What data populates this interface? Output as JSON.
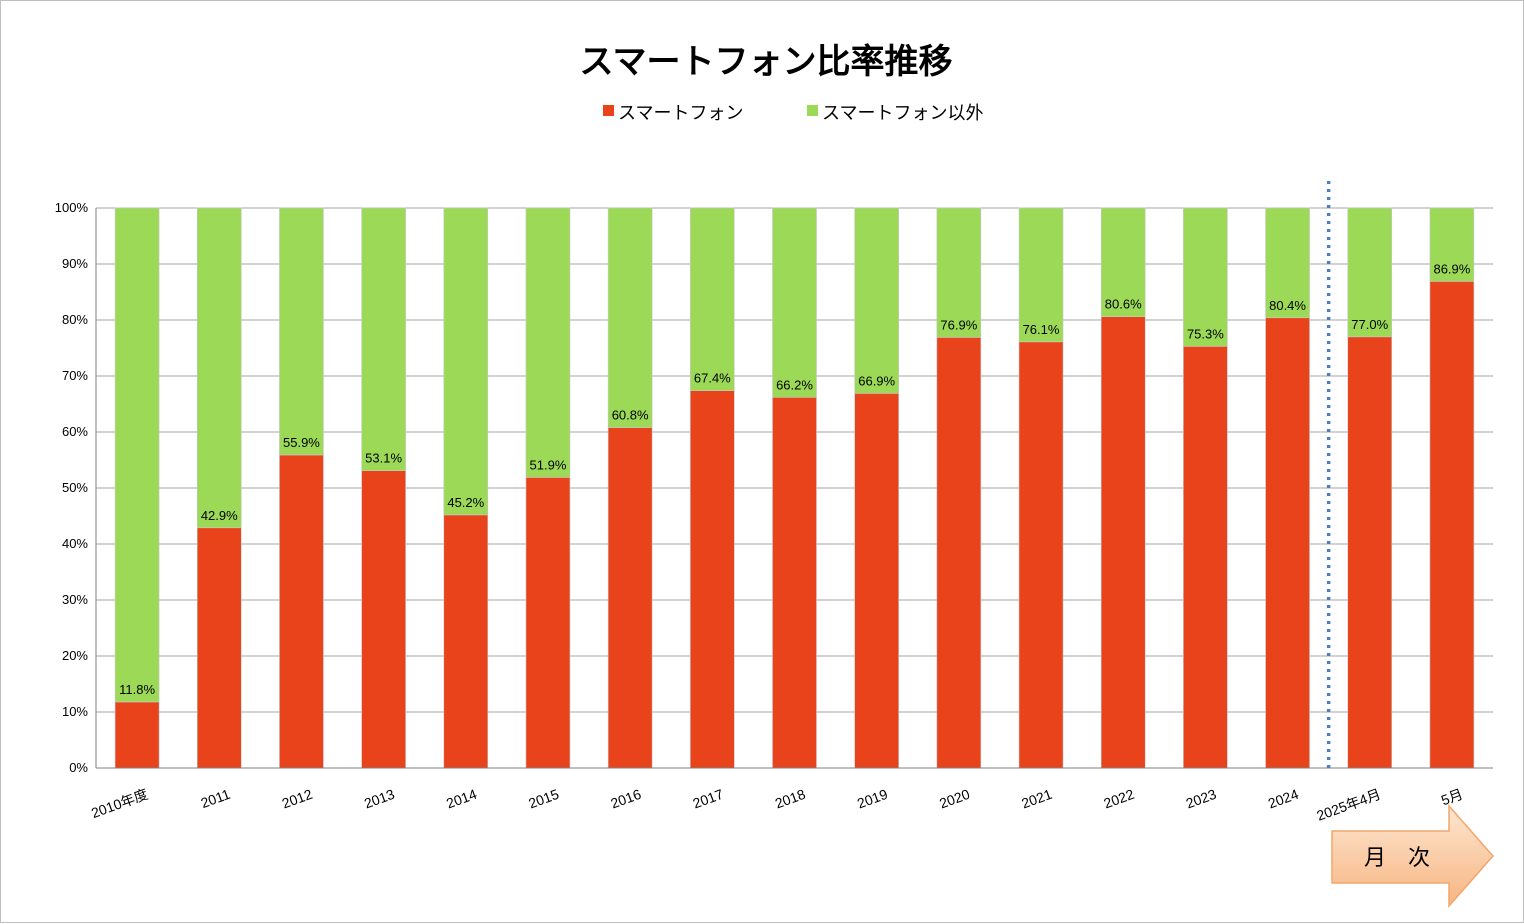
{
  "chart_data": {
    "type": "bar",
    "stacked": true,
    "title": "スマートフォン比率推移",
    "categories": [
      "2010年度",
      "2011",
      "2012",
      "2013",
      "2014",
      "2015",
      "2016",
      "2017",
      "2018",
      "2019",
      "2020",
      "2021",
      "2022",
      "2023",
      "2024",
      "2025年4月",
      "5月"
    ],
    "series": [
      {
        "name": "スマートフォン",
        "color": "#e8431a",
        "values": [
          11.8,
          42.9,
          55.9,
          53.1,
          45.2,
          51.9,
          60.8,
          67.4,
          66.2,
          66.9,
          76.9,
          76.1,
          80.6,
          75.3,
          80.4,
          77.0,
          86.9
        ]
      },
      {
        "name": "スマートフォン以外",
        "color": "#9bd957",
        "values": [
          88.2,
          57.1,
          44.1,
          46.9,
          54.8,
          48.1,
          39.2,
          32.6,
          33.8,
          33.1,
          23.1,
          23.9,
          19.4,
          24.7,
          19.6,
          23.0,
          13.1
        ]
      }
    ],
    "data_labels": [
      "11.8%",
      "42.9%",
      "55.9%",
      "53.1%",
      "45.2%",
      "51.9%",
      "60.8%",
      "67.4%",
      "66.2%",
      "66.9%",
      "76.9%",
      "76.1%",
      "80.6%",
      "75.3%",
      "80.4%",
      "77.0%",
      "86.9%"
    ],
    "y_ticks": [
      "0%",
      "10%",
      "20%",
      "30%",
      "40%",
      "50%",
      "60%",
      "70%",
      "80%",
      "90%",
      "100%"
    ],
    "ylim": [
      0,
      100
    ],
    "grid": true,
    "legend_position": "top",
    "divider_after_category": "2024",
    "divider_color": "#4a7fc0",
    "monthly_label": "月　次"
  }
}
